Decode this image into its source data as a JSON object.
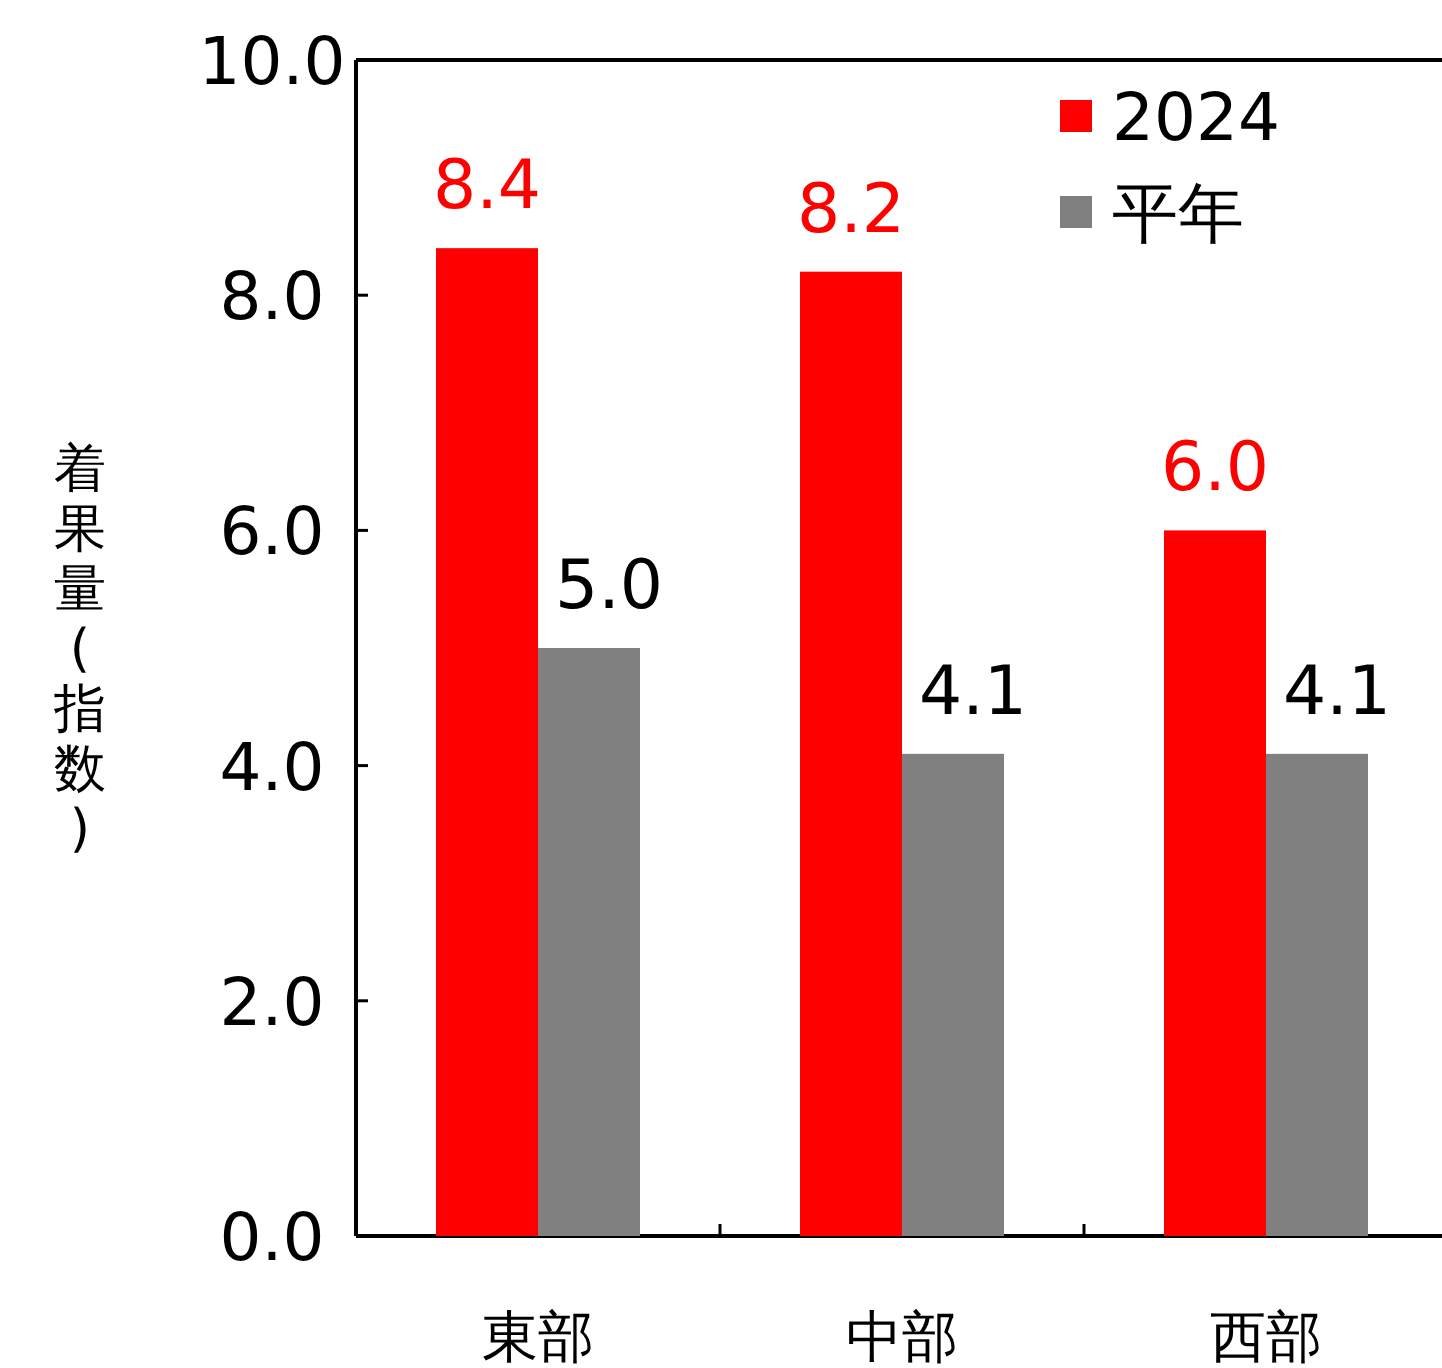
{
  "chart_data": {
    "type": "bar",
    "ylabel": "着果量(指数)",
    "categories": [
      "東部",
      "中部",
      "西部"
    ],
    "series": [
      {
        "name": "2024",
        "color": "#ff0000",
        "values": [
          8.4,
          8.2,
          6.0
        ],
        "value_labels": [
          "8.4",
          "8.2",
          "6.0"
        ]
      },
      {
        "name": "平年",
        "color": "#808080",
        "values": [
          5.0,
          4.1,
          4.1
        ],
        "value_labels": [
          "5.0",
          "4.1",
          "4.1"
        ]
      }
    ],
    "ylim": [
      0,
      10
    ],
    "yticks": [
      {
        "value": 0,
        "label": "0.0"
      },
      {
        "value": 2,
        "label": "2.0"
      },
      {
        "value": 4,
        "label": "4.0"
      },
      {
        "value": 6,
        "label": "6.0"
      },
      {
        "value": 8,
        "label": "8.0"
      },
      {
        "value": 10,
        "label": "10.0"
      }
    ],
    "legend": "top right",
    "grid": false
  }
}
